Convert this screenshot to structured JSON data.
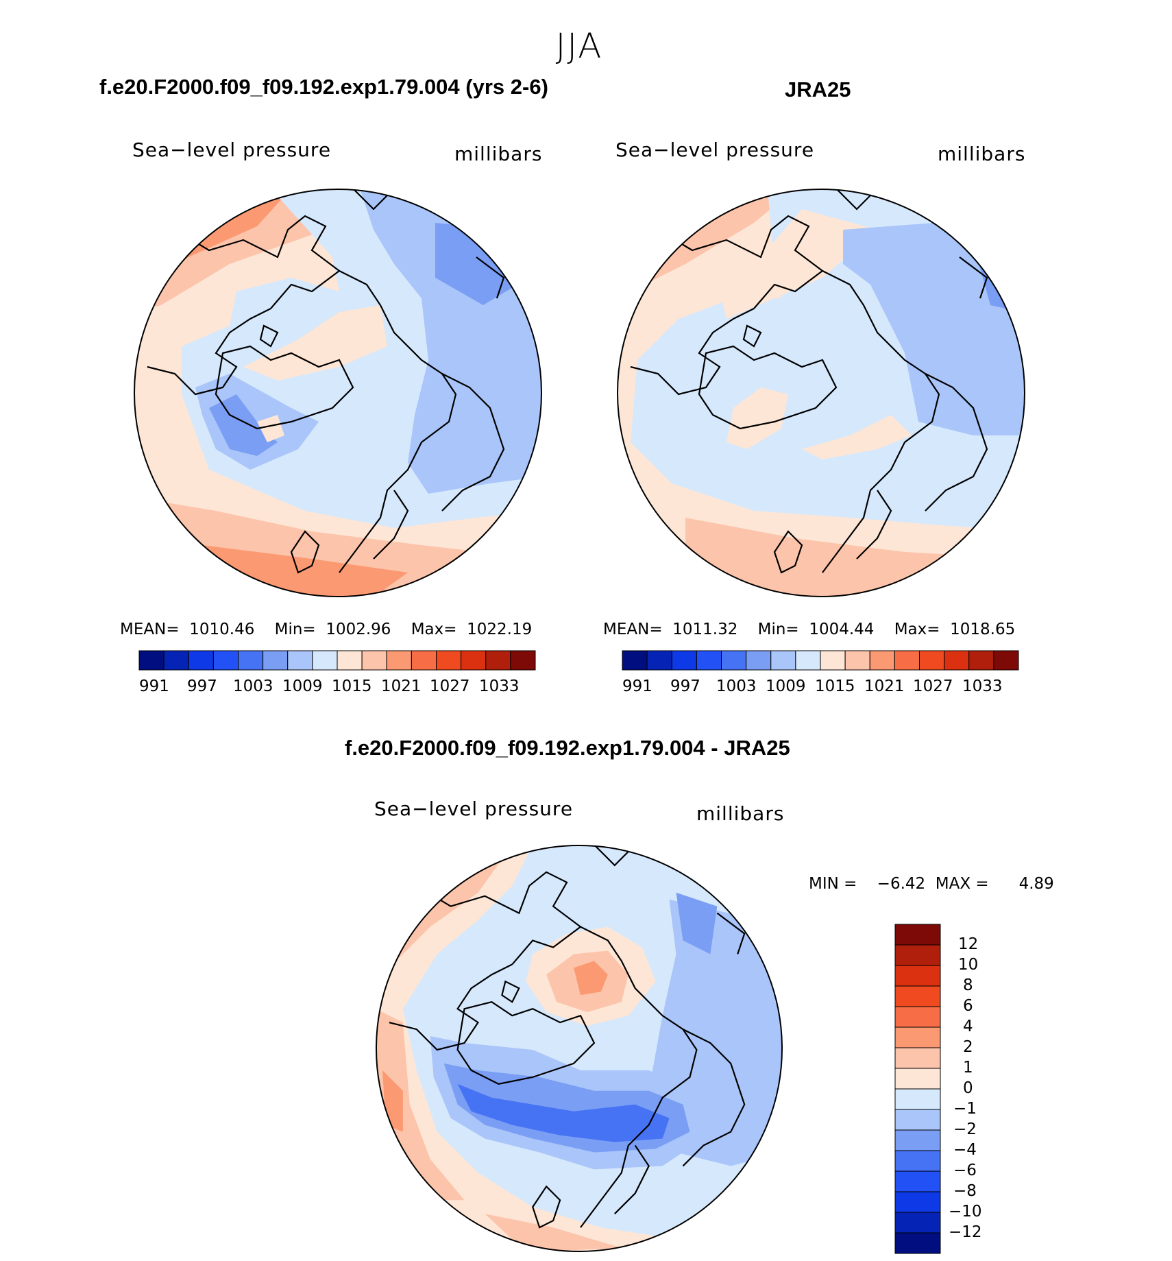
{
  "title": "JJA",
  "colors": {
    "abs_scale": [
      "#000e7f",
      "#0523b5",
      "#0d39e6",
      "#2251f5",
      "#4672f4",
      "#7a9ef4",
      "#a9c5f9",
      "#d6e8fc",
      "#fde6d6",
      "#fcc4aa",
      "#fb9a72",
      "#f76d45",
      "#f04b20",
      "#dc3110",
      "#b01f0c",
      "#7e0a07"
    ],
    "diff_scale": [
      "#7e0a07",
      "#b01f0c",
      "#dc3110",
      "#f04b20",
      "#f76d45",
      "#fb9a72",
      "#fcc4aa",
      "#fde6d6",
      "#d6e8fc",
      "#a9c5f9",
      "#7a9ef4",
      "#4672f4",
      "#2251f5",
      "#0d39e6",
      "#0523b5",
      "#000e7f"
    ]
  },
  "panels": {
    "model": {
      "title": "f.e20.F2000.f09_f09.192.exp1.79.004 (yrs 2-6)",
      "variable": "Sea−level pressure",
      "units": "millibars",
      "mean_label": "MEAN=",
      "mean": "1010.46",
      "min_label": "Min=",
      "min": "1002.96",
      "max_label": "Max=",
      "max": "1022.19",
      "colorbar_ticks": [
        "991",
        "997",
        "1003",
        "1009",
        "1015",
        "1021",
        "1027",
        "1033"
      ]
    },
    "obs": {
      "title": "JRA25",
      "variable": "Sea−level pressure",
      "units": "millibars",
      "mean_label": "MEAN=",
      "mean": "1011.32",
      "min_label": "Min=",
      "min": "1004.44",
      "max_label": "Max=",
      "max": "1018.65",
      "colorbar_ticks": [
        "991",
        "997",
        "1003",
        "1009",
        "1015",
        "1021",
        "1027",
        "1033"
      ]
    },
    "diff": {
      "title": "f.e20.F2000.f09_f09.192.exp1.79.004 - JRA25",
      "variable": "Sea−level pressure",
      "units": "millibars",
      "min_label": "MIN =",
      "min": "−6.42",
      "max_label": "MAX =",
      "max": "4.89",
      "colorbar_ticks": [
        "12",
        "10",
        "8",
        "6",
        "4",
        "2",
        "1",
        "0",
        "−1",
        "−2",
        "−4",
        "−6",
        "−8",
        "−10",
        "−12"
      ]
    }
  }
}
